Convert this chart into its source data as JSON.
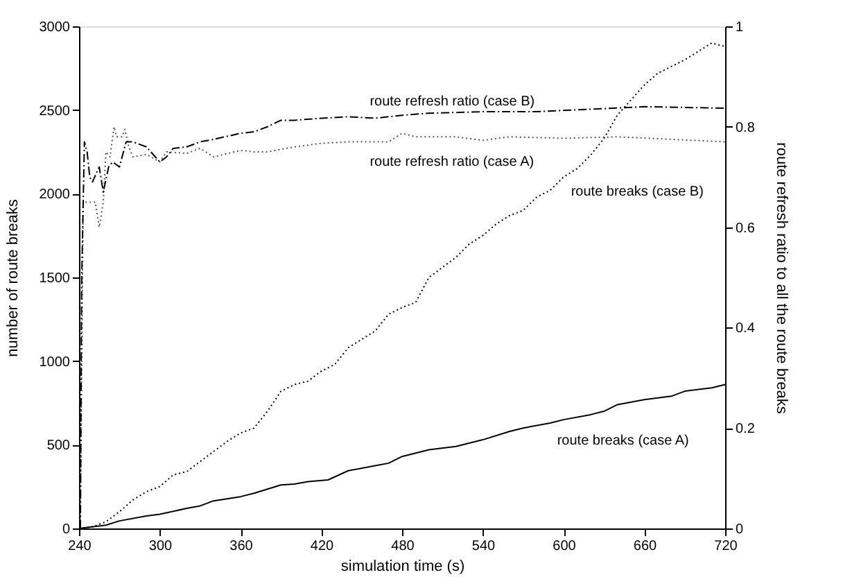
{
  "chart_data": {
    "type": "line",
    "xlabel": "simulation time (s)",
    "ylabel": "number of route breaks",
    "y2label": "route refresh ratio to all the route breaks",
    "xlim": [
      240,
      720
    ],
    "xticks": [
      240,
      300,
      360,
      420,
      480,
      540,
      600,
      660,
      720
    ],
    "ylim": [
      0,
      3000
    ],
    "yticks": [
      0,
      500,
      1000,
      1500,
      2000,
      2500,
      3000
    ],
    "y2lim": [
      0,
      1
    ],
    "y2ticks": [
      0,
      0.2,
      0.4,
      0.6,
      0.8,
      1
    ],
    "grid": false,
    "marker": "none",
    "series": [
      {
        "name": "route breaks (case A)",
        "color": "#000000",
        "line_style": "solid",
        "x": [
          240,
          260,
          270,
          290,
          300,
          320,
          330,
          340,
          360,
          370,
          390,
          400,
          410,
          425,
          440,
          460,
          470,
          480,
          500,
          520,
          540,
          560,
          570,
          590,
          600,
          620,
          630,
          640,
          660,
          680,
          690,
          710,
          720
        ],
        "values": [
          0,
          20,
          45,
          75,
          85,
          120,
          135,
          165,
          190,
          210,
          260,
          265,
          280,
          290,
          345,
          375,
          390,
          430,
          470,
          490,
          530,
          580,
          600,
          630,
          650,
          680,
          700,
          740,
          770,
          790,
          820,
          840,
          860
        ]
      },
      {
        "name": "route breaks (case B)",
        "color": "#000000",
        "line_style": "dotted",
        "x": [
          240,
          250,
          260,
          270,
          280,
          290,
          300,
          310,
          320,
          330,
          340,
          350,
          360,
          370,
          380,
          390,
          400,
          410,
          420,
          430,
          440,
          450,
          460,
          470,
          480,
          490,
          500,
          510,
          520,
          530,
          540,
          550,
          560,
          570,
          580,
          590,
          600,
          610,
          620,
          630,
          640,
          650,
          660,
          670,
          680,
          690,
          700,
          710,
          720
        ],
        "values": [
          0,
          10,
          40,
          100,
          170,
          220,
          250,
          320,
          340,
          400,
          460,
          520,
          570,
          600,
          700,
          820,
          860,
          880,
          940,
          980,
          1080,
          1130,
          1180,
          1280,
          1320,
          1350,
          1500,
          1560,
          1620,
          1700,
          1750,
          1820,
          1870,
          1900,
          1980,
          2020,
          2100,
          2150,
          2230,
          2330,
          2470,
          2560,
          2650,
          2720,
          2760,
          2800,
          2850,
          2900,
          2880
        ]
      },
      {
        "name": "route refresh ratio (case A)",
        "color": "#555555",
        "line_style": "dotted",
        "axis": "y2",
        "x": [
          241,
          243,
          244,
          250,
          252,
          255,
          258,
          260,
          263,
          266,
          268,
          272,
          274,
          277,
          280,
          290,
          300,
          305,
          320,
          330,
          340,
          360,
          370,
          380,
          400,
          420,
          440,
          470,
          480,
          490,
          520,
          540,
          560,
          600,
          640,
          720
        ],
        "values": [
          0,
          0.65,
          0.65,
          0.65,
          0.65,
          0.6,
          0.65,
          0.75,
          0.74,
          0.8,
          0.78,
          0.78,
          0.795,
          0.76,
          0.74,
          0.745,
          0.73,
          0.75,
          0.747,
          0.757,
          0.74,
          0.753,
          0.75,
          0.75,
          0.76,
          0.767,
          0.77,
          0.77,
          0.787,
          0.78,
          0.78,
          0.773,
          0.78,
          0.777,
          0.78,
          0.77
        ]
      },
      {
        "name": "route refresh ratio (case B)",
        "color": "#000000",
        "line_style": "dashed",
        "axis": "y2",
        "x": [
          241,
          242,
          244,
          246,
          248,
          250,
          255,
          258,
          262,
          265,
          270,
          275,
          280,
          290,
          300,
          305,
          310,
          320,
          330,
          340,
          360,
          370,
          380,
          390,
          400,
          420,
          440,
          460,
          480,
          500,
          540,
          580,
          620,
          660,
          720
        ],
        "values": [
          0,
          0.5,
          0.77,
          0.75,
          0.7,
          0.69,
          0.72,
          0.67,
          0.72,
          0.73,
          0.72,
          0.77,
          0.77,
          0.76,
          0.73,
          0.74,
          0.757,
          0.76,
          0.77,
          0.775,
          0.787,
          0.79,
          0.8,
          0.813,
          0.813,
          0.817,
          0.82,
          0.817,
          0.823,
          0.827,
          0.83,
          0.83,
          0.835,
          0.84,
          0.837
        ]
      }
    ]
  }
}
